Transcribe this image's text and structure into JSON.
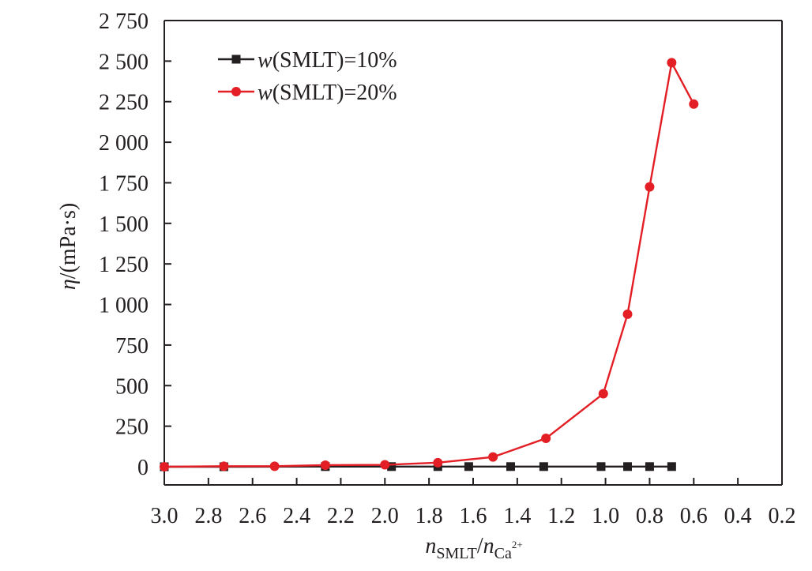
{
  "chart_data": {
    "type": "line",
    "xlabel": {
      "main": "n",
      "sub1": "SMLT",
      "slash": "/",
      "main2": "n",
      "sub2": "Ca",
      "sup2": "2+"
    },
    "ylabel": {
      "symbol": "η",
      "unit": "/(mPa·s)"
    },
    "xlim": [
      3.0,
      0.2
    ],
    "ylim": [
      0,
      2750
    ],
    "x_reversed": true,
    "grid": false,
    "legend_position": "top-left",
    "x_ticks": [
      3.0,
      2.8,
      2.6,
      2.4,
      2.2,
      2.0,
      1.8,
      1.6,
      1.4,
      1.2,
      1.0,
      0.8,
      0.6,
      0.4,
      0.2
    ],
    "x_tick_labels": [
      "3.0",
      "2.8",
      "2.6",
      "2.4",
      "2.2",
      "2.0",
      "1.8",
      "1.6",
      "1.4",
      "1.2",
      "1.0",
      "0.8",
      "0.6",
      "0.4",
      "0.2"
    ],
    "y_ticks": [
      0,
      250,
      500,
      750,
      1000,
      1250,
      1500,
      1750,
      2000,
      2250,
      2500,
      2750
    ],
    "y_tick_labels": [
      "0",
      "250",
      "500",
      "750",
      "1 000",
      "1 250",
      "1 500",
      "1 750",
      "2 000",
      "2 250",
      "2 500",
      "2 750"
    ],
    "series": [
      {
        "name_italic": "w",
        "name_rest": "(SMLT)=10%",
        "color": "#231f20",
        "marker": "square",
        "x": [
          3.0,
          2.73,
          2.27,
          1.97,
          1.76,
          1.62,
          1.43,
          1.28,
          1.02,
          0.9,
          0.8,
          0.7
        ],
        "y": [
          0,
          0,
          1,
          1,
          1,
          1,
          1,
          1,
          1,
          1,
          1,
          1
        ]
      },
      {
        "name_italic": "w",
        "name_rest": "(SMLT)=20%",
        "color": "#e31e25",
        "marker": "circle",
        "x": [
          3.0,
          2.73,
          2.5,
          2.27,
          2.0,
          1.76,
          1.51,
          1.27,
          1.01,
          0.9,
          0.8,
          0.7,
          0.6
        ],
        "y": [
          0,
          3,
          3,
          10,
          12,
          25,
          60,
          175,
          450,
          940,
          1725,
          2490,
          2235
        ]
      }
    ]
  }
}
